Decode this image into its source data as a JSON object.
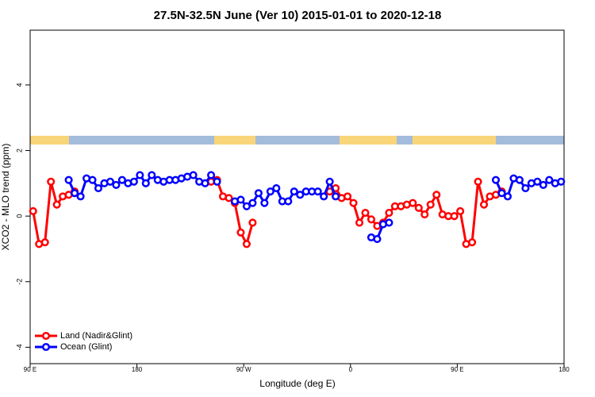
{
  "chart_data": {
    "type": "line",
    "title": "27.5N-32.5N June (Ver 10)   2015-01-01 to 2020-12-18",
    "x_label": "Longitude (deg E)",
    "y_label": "XCO2 - MLO trend (ppm)",
    "x": [
      92.5,
      97.5,
      102.5,
      107.5,
      112.5,
      117.5,
      122.5,
      127.5,
      132.5,
      137.5,
      142.5,
      147.5,
      152.5,
      157.5,
      162.5,
      167.5,
      172.5,
      177.5,
      182.5,
      187.5,
      192.5,
      197.5,
      202.5,
      207.5,
      212.5,
      217.5,
      222.5,
      227.5,
      232.5,
      237.5,
      242.5,
      247.5,
      252.5,
      257.5,
      262.5,
      267.5,
      272.5,
      277.5,
      282.5,
      287.5,
      292.5,
      297.5,
      302.5,
      307.5,
      312.5,
      317.5,
      322.5,
      327.5,
      332.5,
      337.5,
      342.5,
      347.5,
      352.5,
      357.5,
      362.5,
      367.5,
      372.5,
      377.5,
      382.5,
      387.5,
      392.5,
      397.5,
      402.5,
      407.5,
      412.5,
      417.5,
      422.5,
      427.5,
      432.5,
      437.5,
      442.5,
      447.5,
      452.5,
      457.5,
      462.5,
      467.5,
      472.5,
      477.5,
      482.5,
      487.5,
      492.5,
      497.5,
      502.5,
      507.5,
      512.5,
      517.5,
      522.5,
      527.5,
      532.5,
      537.5
    ],
    "series": [
      {
        "name": "Land (Nadir&Glint)",
        "color": "#ff0000",
        "values": [
          0.15,
          -0.85,
          -0.8,
          1.05,
          0.35,
          0.6,
          0.65,
          0.75,
          null,
          null,
          null,
          null,
          null,
          null,
          null,
          null,
          null,
          null,
          null,
          null,
          null,
          null,
          null,
          null,
          null,
          null,
          null,
          null,
          null,
          null,
          1.05,
          1.1,
          0.6,
          0.55,
          0.4,
          -0.5,
          -0.85,
          -0.2,
          null,
          null,
          null,
          null,
          null,
          null,
          null,
          null,
          null,
          null,
          null,
          null,
          0.75,
          0.85,
          0.55,
          0.6,
          0.4,
          -0.2,
          0.1,
          -0.1,
          -0.3,
          -0.2,
          0.1,
          0.3,
          0.3,
          0.35,
          0.4,
          0.25,
          0.05,
          0.35,
          0.65,
          0.05,
          0,
          0,
          0.15,
          -0.85,
          -0.8,
          1.05,
          0.35,
          0.6,
          0.65,
          0.75,
          null,
          null,
          null,
          null,
          null,
          null,
          null,
          null,
          null,
          null
        ]
      },
      {
        "name": "Ocean (Glint)",
        "color": "#0000ff",
        "values": [
          null,
          null,
          null,
          null,
          null,
          null,
          1.1,
          0.7,
          0.6,
          1.15,
          1.1,
          0.85,
          1.0,
          1.05,
          0.95,
          1.1,
          1.0,
          1.05,
          1.25,
          1.0,
          1.25,
          1.1,
          1.05,
          1.1,
          1.1,
          1.15,
          1.2,
          1.25,
          1.05,
          1.0,
          1.25,
          1.05,
          null,
          null,
          0.45,
          0.5,
          0.3,
          0.4,
          0.7,
          0.4,
          0.75,
          0.85,
          0.45,
          0.45,
          0.75,
          0.65,
          0.75,
          0.75,
          0.75,
          0.6,
          1.05,
          0.6,
          null,
          null,
          null,
          null,
          null,
          -0.65,
          -0.7,
          -0.25,
          -0.2,
          null,
          null,
          null,
          null,
          null,
          null,
          null,
          null,
          null,
          null,
          null,
          null,
          null,
          null,
          null,
          null,
          null,
          1.1,
          0.7,
          0.6,
          1.15,
          1.1,
          0.85,
          1.0,
          1.05,
          0.95,
          1.1,
          1.0,
          1.05
        ]
      }
    ],
    "xlim": [
      90,
      540
    ],
    "xticks": [
      {
        "value": 90,
        "label": "90 E"
      },
      {
        "value": 180,
        "label": "180"
      },
      {
        "value": 270,
        "label": "90 W"
      },
      {
        "value": 360,
        "label": "0"
      },
      {
        "value": 450,
        "label": "90 E"
      },
      {
        "value": 540,
        "label": "180"
      }
    ],
    "ylim": [
      -4.5,
      5.67
    ],
    "yticks": [
      -4,
      -2,
      0,
      2,
      4
    ],
    "legend": "bottom-left"
  }
}
